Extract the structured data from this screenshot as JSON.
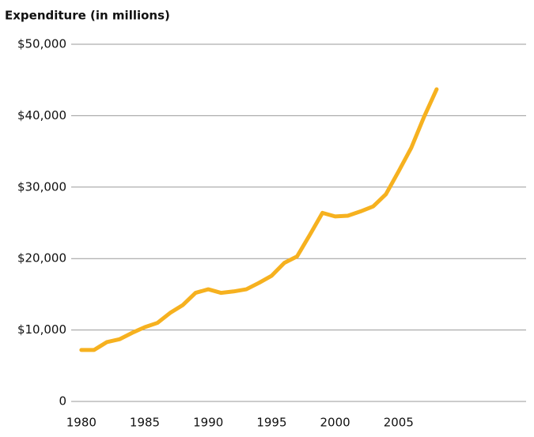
{
  "chart_data": {
    "type": "line",
    "title": "Expenditure (in millions)",
    "x": [
      1980,
      1981,
      1982,
      1983,
      1984,
      1985,
      1986,
      1987,
      1988,
      1989,
      1990,
      1991,
      1992,
      1993,
      1994,
      1995,
      1996,
      1997,
      1998,
      1999,
      2000,
      2001,
      2002,
      2003,
      2004,
      2005,
      2006,
      2007,
      2008
    ],
    "series": [
      {
        "name": "Expenditure",
        "color": "#f6b11f",
        "values": [
          7200,
          7200,
          8300,
          8700,
          9600,
          10400,
          11000,
          12400,
          13500,
          15200,
          15700,
          15200,
          15400,
          15700,
          16600,
          17600,
          19400,
          20300,
          23300,
          26400,
          25900,
          26000,
          26600,
          27300,
          29000,
          32200,
          35500,
          39800,
          43700
        ]
      }
    ],
    "xlim": [
      1979.2,
      2015.05
    ],
    "xticks": [
      1980,
      1985,
      1990,
      1995,
      2000,
      2005
    ],
    "ylim": [
      0,
      50000
    ],
    "yticks": [
      0,
      {
        "value": 10000,
        "label": "$10,000"
      },
      {
        "value": 20000,
        "label": "$20,000"
      },
      {
        "value": 30000,
        "label": "$30,000"
      },
      {
        "value": 40000,
        "label": "$40,000"
      },
      {
        "value": 50000,
        "label": "$50,000"
      }
    ],
    "grid": true
  }
}
